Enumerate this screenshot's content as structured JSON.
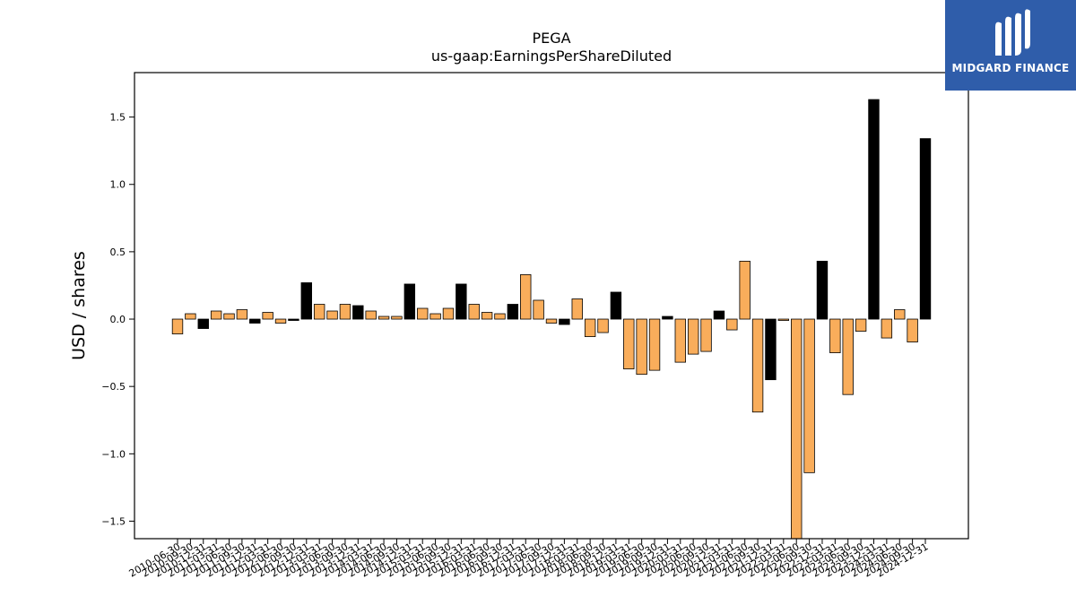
{
  "chart_data": {
    "type": "bar",
    "title": "PEGA",
    "subtitle": "us-gaap:EarningsPerShareDiluted",
    "xlabel": "",
    "ylabel": "USD / shares",
    "ylim": [
      -1.63,
      1.83
    ],
    "yticks": [
      -1.5,
      -1.0,
      -0.5,
      0.0,
      0.5,
      1.0,
      1.5
    ],
    "ytick_labels": [
      "−1.5",
      "−1.0",
      "−0.5",
      "0.0",
      "0.5",
      "1.0",
      "1.5"
    ],
    "grid": false,
    "colors": {
      "quarterly": "#f9ad5b",
      "annual": "#000000",
      "edge": "#000000"
    },
    "categories": [
      "2010-06-30",
      "2010-09-30",
      "2010-12-31",
      "2011-03-31",
      "2011-06-30",
      "2011-09-30",
      "2011-12-31",
      "2012-03-31",
      "2012-06-30",
      "2012-09-30",
      "2012-12-31",
      "2013-03-31",
      "2013-06-30",
      "2013-09-30",
      "2013-12-31",
      "2014-03-31",
      "2014-06-30",
      "2014-09-30",
      "2014-12-31",
      "2015-03-31",
      "2015-06-30",
      "2015-09-30",
      "2015-12-31",
      "2016-03-31",
      "2016-06-30",
      "2016-09-30",
      "2016-12-31",
      "2017-03-31",
      "2017-06-30",
      "2017-09-30",
      "2017-12-31",
      "2018-03-31",
      "2018-06-30",
      "2018-09-30",
      "2018-12-31",
      "2019-03-31",
      "2019-06-30",
      "2019-09-30",
      "2019-12-31",
      "2020-03-31",
      "2020-06-30",
      "2020-09-30",
      "2020-12-31",
      "2021-03-31",
      "2021-06-30",
      "2021-09-30",
      "2021-12-31",
      "2022-03-31",
      "2022-06-30",
      "2022-09-30",
      "2022-12-31",
      "2023-03-31",
      "2023-06-30",
      "2023-09-30",
      "2023-12-31",
      "2024-03-31",
      "2024-06-30",
      "2024-09-30",
      "2024-12-31"
    ],
    "values": [
      -0.11,
      0.04,
      -0.07,
      0.06,
      0.04,
      0.07,
      -0.03,
      0.05,
      -0.03,
      -0.01,
      0.27,
      0.11,
      0.06,
      0.11,
      0.1,
      0.06,
      0.02,
      0.02,
      0.26,
      0.08,
      0.04,
      0.08,
      0.26,
      0.11,
      0.05,
      0.04,
      0.11,
      0.33,
      0.14,
      -0.03,
      -0.04,
      0.15,
      -0.13,
      -0.1,
      0.2,
      -0.37,
      -0.41,
      -0.38,
      0.02,
      -0.32,
      -0.26,
      -0.24,
      0.06,
      -0.08,
      0.43,
      -0.69,
      -0.45,
      -0.01,
      -1.63,
      -1.14,
      0.43,
      -0.25,
      -0.56,
      -0.09,
      1.63,
      -0.14,
      0.07,
      -0.17,
      1.34
    ],
    "annual": [
      false,
      false,
      true,
      false,
      false,
      false,
      true,
      false,
      false,
      true,
      true,
      false,
      false,
      false,
      true,
      false,
      false,
      false,
      true,
      false,
      false,
      false,
      true,
      false,
      false,
      false,
      true,
      false,
      false,
      false,
      true,
      false,
      false,
      false,
      true,
      false,
      false,
      false,
      true,
      false,
      false,
      false,
      true,
      false,
      false,
      false,
      true,
      false,
      false,
      false,
      true,
      false,
      false,
      false,
      true,
      false,
      false,
      false,
      true
    ]
  },
  "logo": {
    "text": "MIDGARD FINANCE",
    "mark": "M"
  }
}
